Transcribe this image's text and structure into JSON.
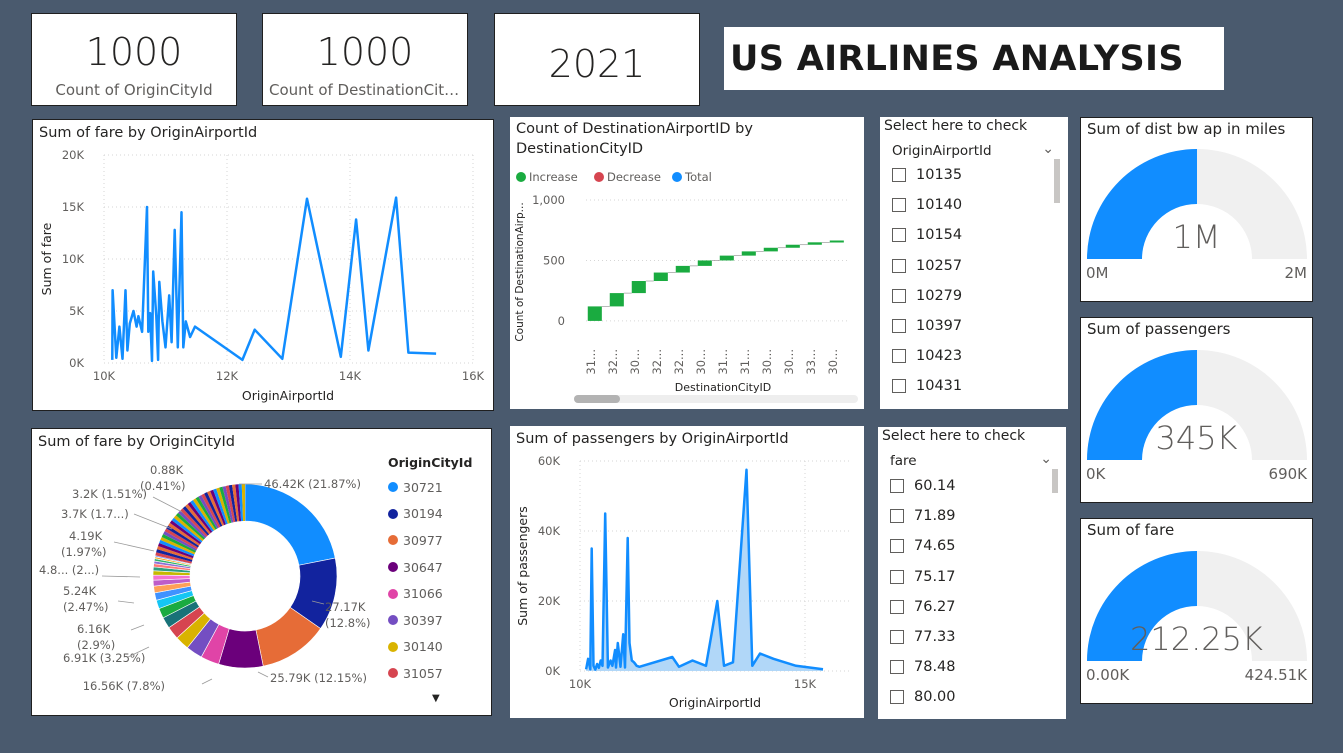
{
  "kpis": [
    {
      "value": "1000",
      "label": "Count of OriginCityId"
    },
    {
      "value": "1000",
      "label": "Count of DestinationCityId"
    },
    {
      "value": "2021",
      "label": ""
    }
  ],
  "report_title": "US AIRLINES ANALYSIS",
  "colors": {
    "blue": "#118dff",
    "dark_blue": "#12239e",
    "green": "#1aab40",
    "red": "#d64550",
    "gauge_bg": "#f0f0f0"
  },
  "fare_line": {
    "title": "Sum of fare by OriginAirportId",
    "xlabel": "OriginAirportId",
    "ylabel": "Sum of fare",
    "x_ticks": [
      "10K",
      "12K",
      "14K",
      "16K"
    ],
    "y_ticks": [
      "0K",
      "5K",
      "10K",
      "15K",
      "20K"
    ]
  },
  "waterfall": {
    "title": "Count of DestinationAirportID by DestinationCityID",
    "legend": [
      "Increase",
      "Decrease",
      "Total"
    ],
    "ylabel": "Count of DestinationAirp...",
    "xlabel": "DestinationCityID",
    "y_ticks": [
      "0",
      "500",
      "1,000"
    ],
    "x_ticks": [
      "31...",
      "32...",
      "30...",
      "32...",
      "32...",
      "30...",
      "31...",
      "31...",
      "30...",
      "30...",
      "33...",
      "30..."
    ]
  },
  "slicer1": {
    "header": "Select here to check",
    "field": "OriginAirportId",
    "items": [
      "10135",
      "10140",
      "10154",
      "10257",
      "10279",
      "10397",
      "10423",
      "10431"
    ]
  },
  "slicer2": {
    "header": "Select here to check",
    "field": "fare",
    "items": [
      "60.14",
      "71.89",
      "74.65",
      "75.17",
      "76.27",
      "77.33",
      "78.48",
      "80.00"
    ]
  },
  "gauges": [
    {
      "title": "Sum of dist bw ap in miles",
      "value_label": "1M",
      "min": "0M",
      "max": "2M"
    },
    {
      "title": "Sum of passengers",
      "value_label": "345K",
      "min": "0K",
      "max": "690K"
    },
    {
      "title": "Sum of fare",
      "value_label": "212.25K",
      "min": "0.00K",
      "max": "424.51K"
    }
  ],
  "donut": {
    "title": "Sum of fare by OriginCityId",
    "legend_title": "OriginCityId",
    "legend_items": [
      {
        "name": "30721",
        "color": "#118dff"
      },
      {
        "name": "30194",
        "color": "#12239e"
      },
      {
        "name": "30977",
        "color": "#e66c37"
      },
      {
        "name": "30647",
        "color": "#6b007b"
      },
      {
        "name": "31066",
        "color": "#e044a7"
      },
      {
        "name": "30397",
        "color": "#744ec2"
      },
      {
        "name": "30140",
        "color": "#d9b300"
      },
      {
        "name": "31057",
        "color": "#d64550"
      }
    ],
    "labels": [
      {
        "text": "46.42K (21.87%)"
      },
      {
        "text": "27.17K"
      },
      {
        "text": "(12.8%)"
      },
      {
        "text": "25.79K (12.15%)"
      },
      {
        "text": "16.56K (7.8%)"
      },
      {
        "text": "6.91K (3.25%)"
      },
      {
        "text": "6.16K"
      },
      {
        "text": "(2.9%)"
      },
      {
        "text": "5.24K"
      },
      {
        "text": "(2.47%)"
      },
      {
        "text": "4.8... (2...)"
      },
      {
        "text": "4.19K"
      },
      {
        "text": "(1.97%)"
      },
      {
        "text": "3.7K (1.7...)"
      },
      {
        "text": "3.2K (1.51%)"
      },
      {
        "text": "0.88K"
      },
      {
        "text": "(0.41%)"
      }
    ]
  },
  "pass_area": {
    "title": "Sum of passengers by OriginAirportId",
    "xlabel": "OriginAirportId",
    "ylabel": "Sum of passengers",
    "x_ticks": [
      "10K",
      "15K"
    ],
    "y_ticks": [
      "0K",
      "20K",
      "40K",
      "60K"
    ]
  },
  "chart_data": [
    {
      "type": "line",
      "title": "Sum of fare by OriginAirportId",
      "xlabel": "OriginAirportId",
      "ylabel": "Sum of fare",
      "xlim": [
        10000,
        16000
      ],
      "ylim": [
        0,
        20000
      ],
      "x": [
        10135,
        10140,
        10200,
        10250,
        10300,
        10350,
        10380,
        10420,
        10480,
        10530,
        10560,
        10620,
        10700,
        10720,
        10750,
        10780,
        10800,
        10850,
        10880,
        10900,
        10950,
        11000,
        11060,
        11100,
        11150,
        11200,
        11260,
        11290,
        11330,
        11400,
        11480,
        12250,
        12450,
        12900,
        13300,
        13850,
        14100,
        14300,
        14750,
        14950,
        15400
      ],
      "y": [
        300,
        7000,
        500,
        3500,
        400,
        7000,
        1200,
        3800,
        5000,
        3500,
        4500,
        3000,
        15000,
        3000,
        4800,
        200,
        8800,
        4500,
        300,
        7800,
        4000,
        1500,
        6500,
        2000,
        12800,
        1500,
        14500,
        1500,
        4000,
        2500,
        3500,
        300,
        3200,
        400,
        15800,
        600,
        13800,
        1200,
        15900,
        1000,
        900
      ]
    },
    {
      "type": "waterfall",
      "title": "Count of DestinationAirportID by DestinationCityID",
      "xlabel": "DestinationCityID",
      "ylabel": "Count of DestinationAirp...",
      "ylim": [
        -100,
        1000
      ],
      "categories": [
        "31...",
        "32...",
        "30...",
        "32...",
        "32...",
        "30...",
        "31...",
        "31...",
        "30...",
        "30...",
        "33...",
        "30..."
      ],
      "series": [
        {
          "name": "Increase",
          "values": [
            120,
            110,
            100,
            70,
            55,
            45,
            40,
            35,
            30,
            25,
            20,
            15
          ]
        }
      ]
    },
    {
      "type": "pie",
      "title": "Sum of fare by OriginCityId",
      "categories": [
        "30721",
        "30194",
        "30977",
        "30647",
        "31066",
        "30397",
        "30140",
        "31057"
      ],
      "values": [
        46.42,
        27.17,
        25.79,
        16.56,
        6.91,
        6.16,
        5.24,
        4.8
      ],
      "small_slices": [
        4.19,
        3.7,
        3.2,
        0.88
      ]
    },
    {
      "type": "area",
      "title": "Sum of passengers by OriginAirportId",
      "xlabel": "OriginAirportId",
      "ylabel": "Sum of passengers",
      "xlim": [
        10000,
        16000
      ],
      "ylim": [
        0,
        60000
      ],
      "x": [
        10135,
        10180,
        10230,
        10260,
        10300,
        10340,
        10380,
        10420,
        10460,
        10500,
        10560,
        10620,
        10680,
        10720,
        10780,
        10800,
        10840,
        10900,
        10960,
        11000,
        11060,
        11100,
        11150,
        11200,
        11260,
        11320,
        12050,
        12200,
        12500,
        12800,
        13050,
        13200,
        13400,
        13700,
        13830,
        14000,
        14300,
        14800,
        15400
      ],
      "y": [
        500,
        3500,
        500,
        35000,
        1500,
        400,
        2000,
        900,
        3000,
        1500,
        45000,
        1000,
        3000,
        1500,
        6000,
        1000,
        8000,
        1200,
        10500,
        1000,
        38000,
        8000,
        3000,
        2500,
        1500,
        1200,
        4000,
        1200,
        3000,
        1500,
        20000,
        1500,
        2500,
        57500,
        1500,
        5000,
        3500,
        1500,
        500
      ]
    }
  ]
}
